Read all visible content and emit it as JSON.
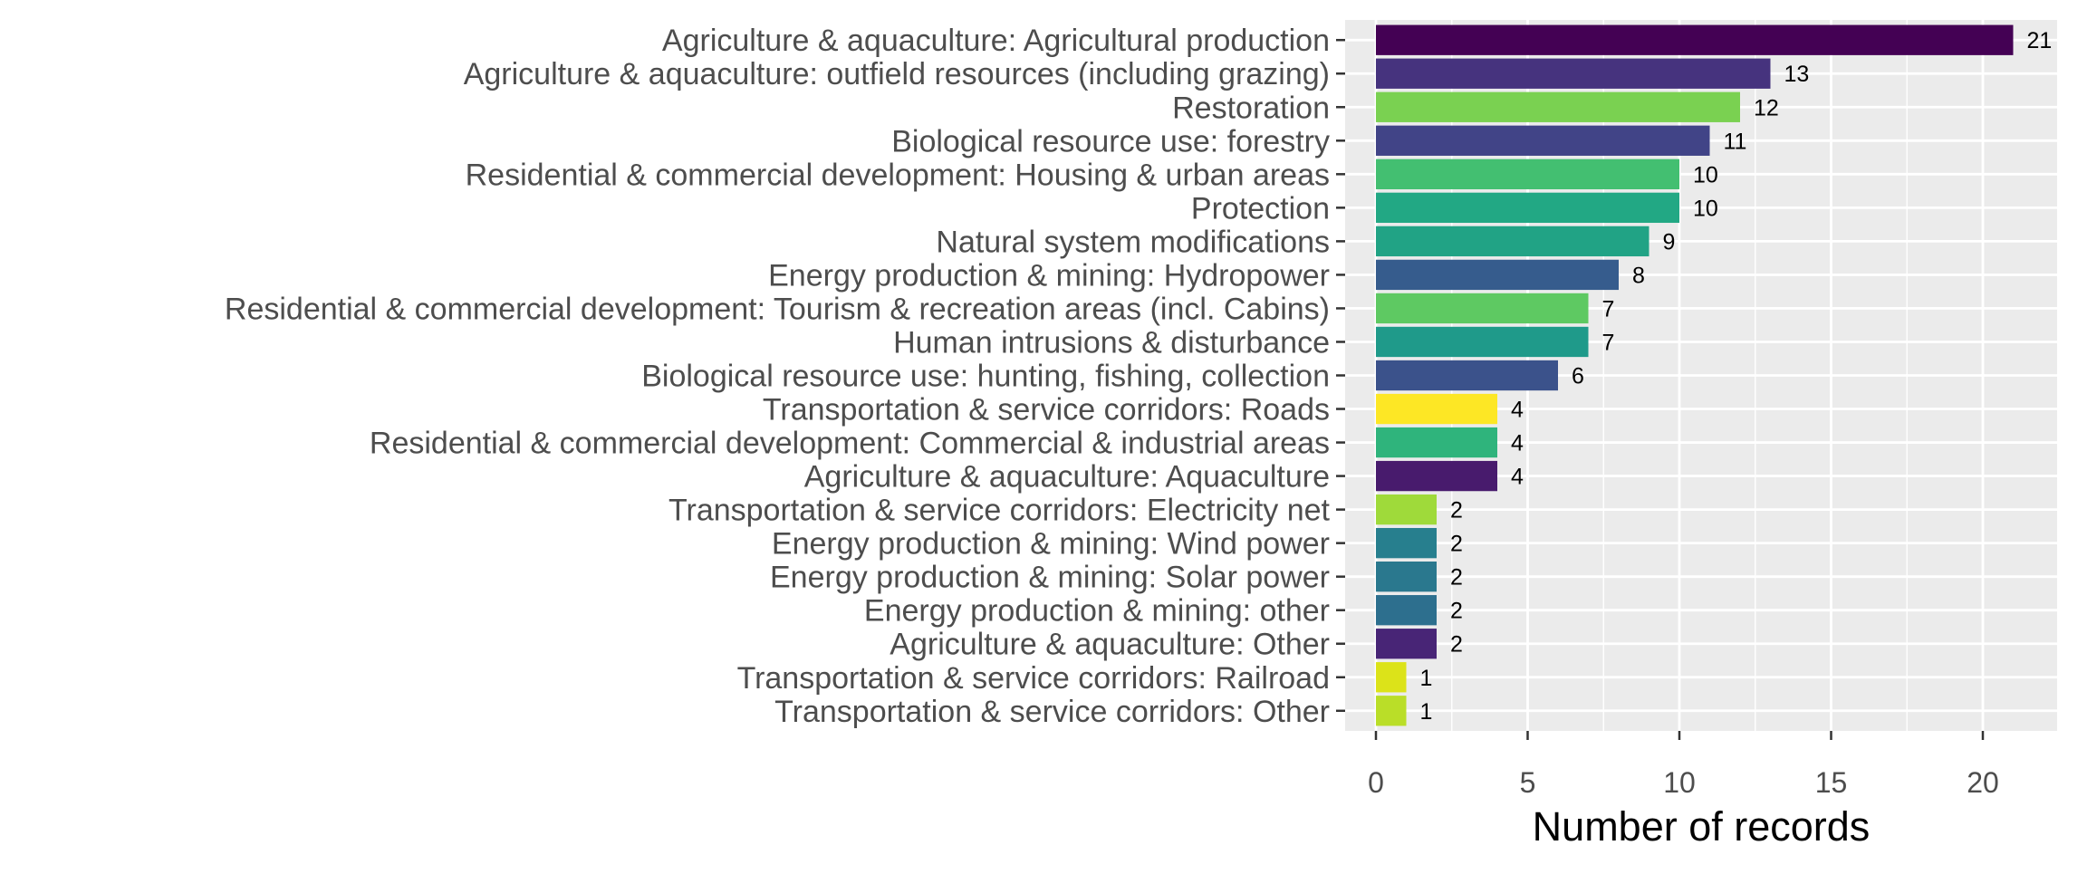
{
  "chart_data": {
    "type": "bar",
    "orientation": "horizontal",
    "xlabel": "Number of records",
    "ylabel": "",
    "xlim": [
      0,
      22.5
    ],
    "x_ticks": [
      0,
      5,
      10,
      15,
      20
    ],
    "grid": true,
    "legend": "none",
    "panel_color": "#EBEBEB",
    "categories": [
      "Agriculture & aquaculture: Agricultural production",
      "Agriculture & aquaculture: outfield resources (including grazing)",
      "Restoration",
      "Biological resource use: forestry",
      "Residential & commercial development: Housing & urban areas",
      "Protection",
      "Natural system modifications",
      "Energy production & mining: Hydropower",
      "Residential & commercial development: Tourism & recreation areas (incl. Cabins)",
      "Human intrusions & disturbance",
      "Biological resource use: hunting, fishing, collection",
      "Transportation & service corridors: Roads",
      "Residential & commercial development: Commercial & industrial areas",
      "Agriculture & aquaculture: Aquaculture",
      "Transportation & service corridors: Electricity net",
      "Energy production & mining: Wind power",
      "Energy production & mining: Solar power",
      "Energy production & mining: other",
      "Agriculture & aquaculture: Other",
      "Transportation & service corridors: Railroad",
      "Transportation & service corridors: Other"
    ],
    "values": [
      21,
      13,
      12,
      11,
      10,
      10,
      9,
      8,
      7,
      7,
      6,
      4,
      4,
      4,
      2,
      2,
      2,
      2,
      2,
      1,
      1
    ],
    "colors": [
      "#440154",
      "#46337E",
      "#7AD151",
      "#414487",
      "#43BF71",
      "#22A884",
      "#21A385",
      "#365C8D",
      "#5EC962",
      "#1F9A8A",
      "#3B528B",
      "#FDE725",
      "#2FB47C",
      "#481B6D",
      "#9FDA3A",
      "#277F8E",
      "#2A788E",
      "#2D6F8E",
      "#482576",
      "#DCE319",
      "#BADE28"
    ]
  }
}
